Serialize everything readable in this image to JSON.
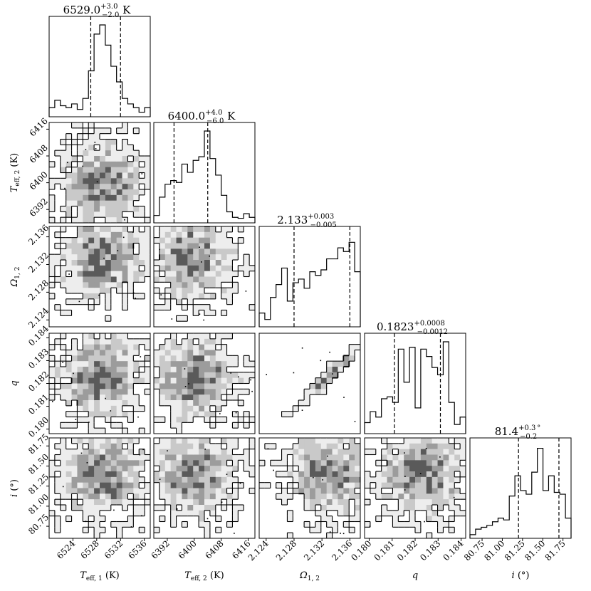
{
  "chart_data": {
    "type": "corner",
    "parameters": [
      {
        "key": "teff1",
        "label": "T_eff,1 (K)",
        "label_main": "T",
        "label_sub": "eff, 1",
        "label_unit": " (K)",
        "range": [
          6520,
          6537
        ],
        "ticks": [
          6524,
          6528,
          6532,
          6536
        ],
        "tick_labels": [
          "6524",
          "6528",
          "6532",
          "6536"
        ],
        "median": 6529.0,
        "plus": 3.0,
        "minus": 2.0,
        "title_value": "6529.0",
        "title_plus": "+3.0",
        "title_minus": "−2.0",
        "title_unit": " K",
        "hist": [
          0.1,
          0.18,
          0.12,
          0.1,
          0.14,
          0.08,
          0.2,
          0.5,
          0.9,
          1.0,
          0.78,
          0.55,
          0.38,
          0.2,
          0.14,
          0.1,
          0.05,
          0.1
        ]
      },
      {
        "key": "teff2",
        "label": "T_eff,2 (K)",
        "label_main": "T",
        "label_sub": "eff, 2",
        "label_unit": " (K)",
        "range": [
          6388,
          6418
        ],
        "ticks": [
          6392,
          6400,
          6408,
          6416
        ],
        "tick_labels": [
          "6392",
          "6400",
          "6408",
          "6416"
        ],
        "median": 6400.0,
        "plus": 4.0,
        "minus": 6.0,
        "title_value": "6400.0",
        "title_plus": "+4.0",
        "title_minus": "−6.0",
        "title_unit": " K",
        "hist": [
          0.08,
          0.28,
          0.42,
          0.46,
          0.44,
          0.64,
          0.55,
          0.68,
          0.72,
          1.0,
          0.7,
          0.52,
          0.3,
          0.12,
          0.06,
          0.05,
          0.1,
          0.06
        ]
      },
      {
        "key": "omega",
        "label": "Ω_1,2",
        "label_main": "Ω",
        "label_sub": "1, 2",
        "label_unit": "",
        "range": [
          2.123,
          2.1375
        ],
        "ticks": [
          2.124,
          2.128,
          2.132,
          2.136
        ],
        "tick_labels": [
          "2.124",
          "2.128",
          "2.132",
          "2.136"
        ],
        "median": 2.133,
        "plus": 0.003,
        "minus": 0.005,
        "title_value": "2.133",
        "title_plus": "+0.003",
        "title_minus": "−0.005",
        "title_unit": "",
        "hist": [
          0.15,
          0.08,
          0.32,
          0.46,
          0.64,
          0.28,
          0.48,
          0.52,
          0.42,
          0.6,
          0.56,
          0.62,
          0.74,
          0.74,
          0.86,
          0.82,
          0.92,
          0.6
        ]
      },
      {
        "key": "q",
        "label": "q",
        "label_main": "q",
        "label_sub": "",
        "label_unit": "",
        "range": [
          0.1798,
          0.1842
        ],
        "ticks": [
          0.18,
          0.181,
          0.182,
          0.183,
          0.184
        ],
        "tick_labels": [
          "0.180",
          "0.181",
          "0.182",
          "0.183",
          "0.184"
        ],
        "median": 0.1823,
        "plus": 0.0008,
        "minus": 0.0012,
        "title_value": "0.1823",
        "title_plus": "+0.0008",
        "title_minus": "−0.0012",
        "title_unit": "",
        "hist": [
          0.12,
          0.24,
          0.18,
          0.38,
          0.4,
          0.34,
          0.92,
          0.56,
          0.94,
          0.28,
          0.92,
          0.84,
          0.72,
          0.64,
          1.0,
          0.34,
          0.1,
          0.18
        ]
      },
      {
        "key": "incl",
        "label": "i (°)",
        "label_main": "i",
        "label_sub": "",
        "label_unit": " (°)",
        "range": [
          80.6,
          81.85
        ],
        "ticks": [
          80.75,
          81.0,
          81.25,
          81.5,
          81.75
        ],
        "tick_labels": [
          "80.75",
          "81.00",
          "81.25",
          "81.50",
          "81.75"
        ],
        "median": 81.4,
        "plus": 0.3,
        "minus": 0.2,
        "title_value": "81.4",
        "title_plus": "+0.3",
        "title_minus": "−0.2",
        "title_unit": "°",
        "hist": [
          0.04,
          0.1,
          0.12,
          0.14,
          0.18,
          0.22,
          0.2,
          0.46,
          0.68,
          0.52,
          0.48,
          0.72,
          0.98,
          0.52,
          0.68,
          0.5,
          0.48,
          0.22
        ]
      }
    ],
    "quantiles_shown": true,
    "contour_levels": 4
  }
}
